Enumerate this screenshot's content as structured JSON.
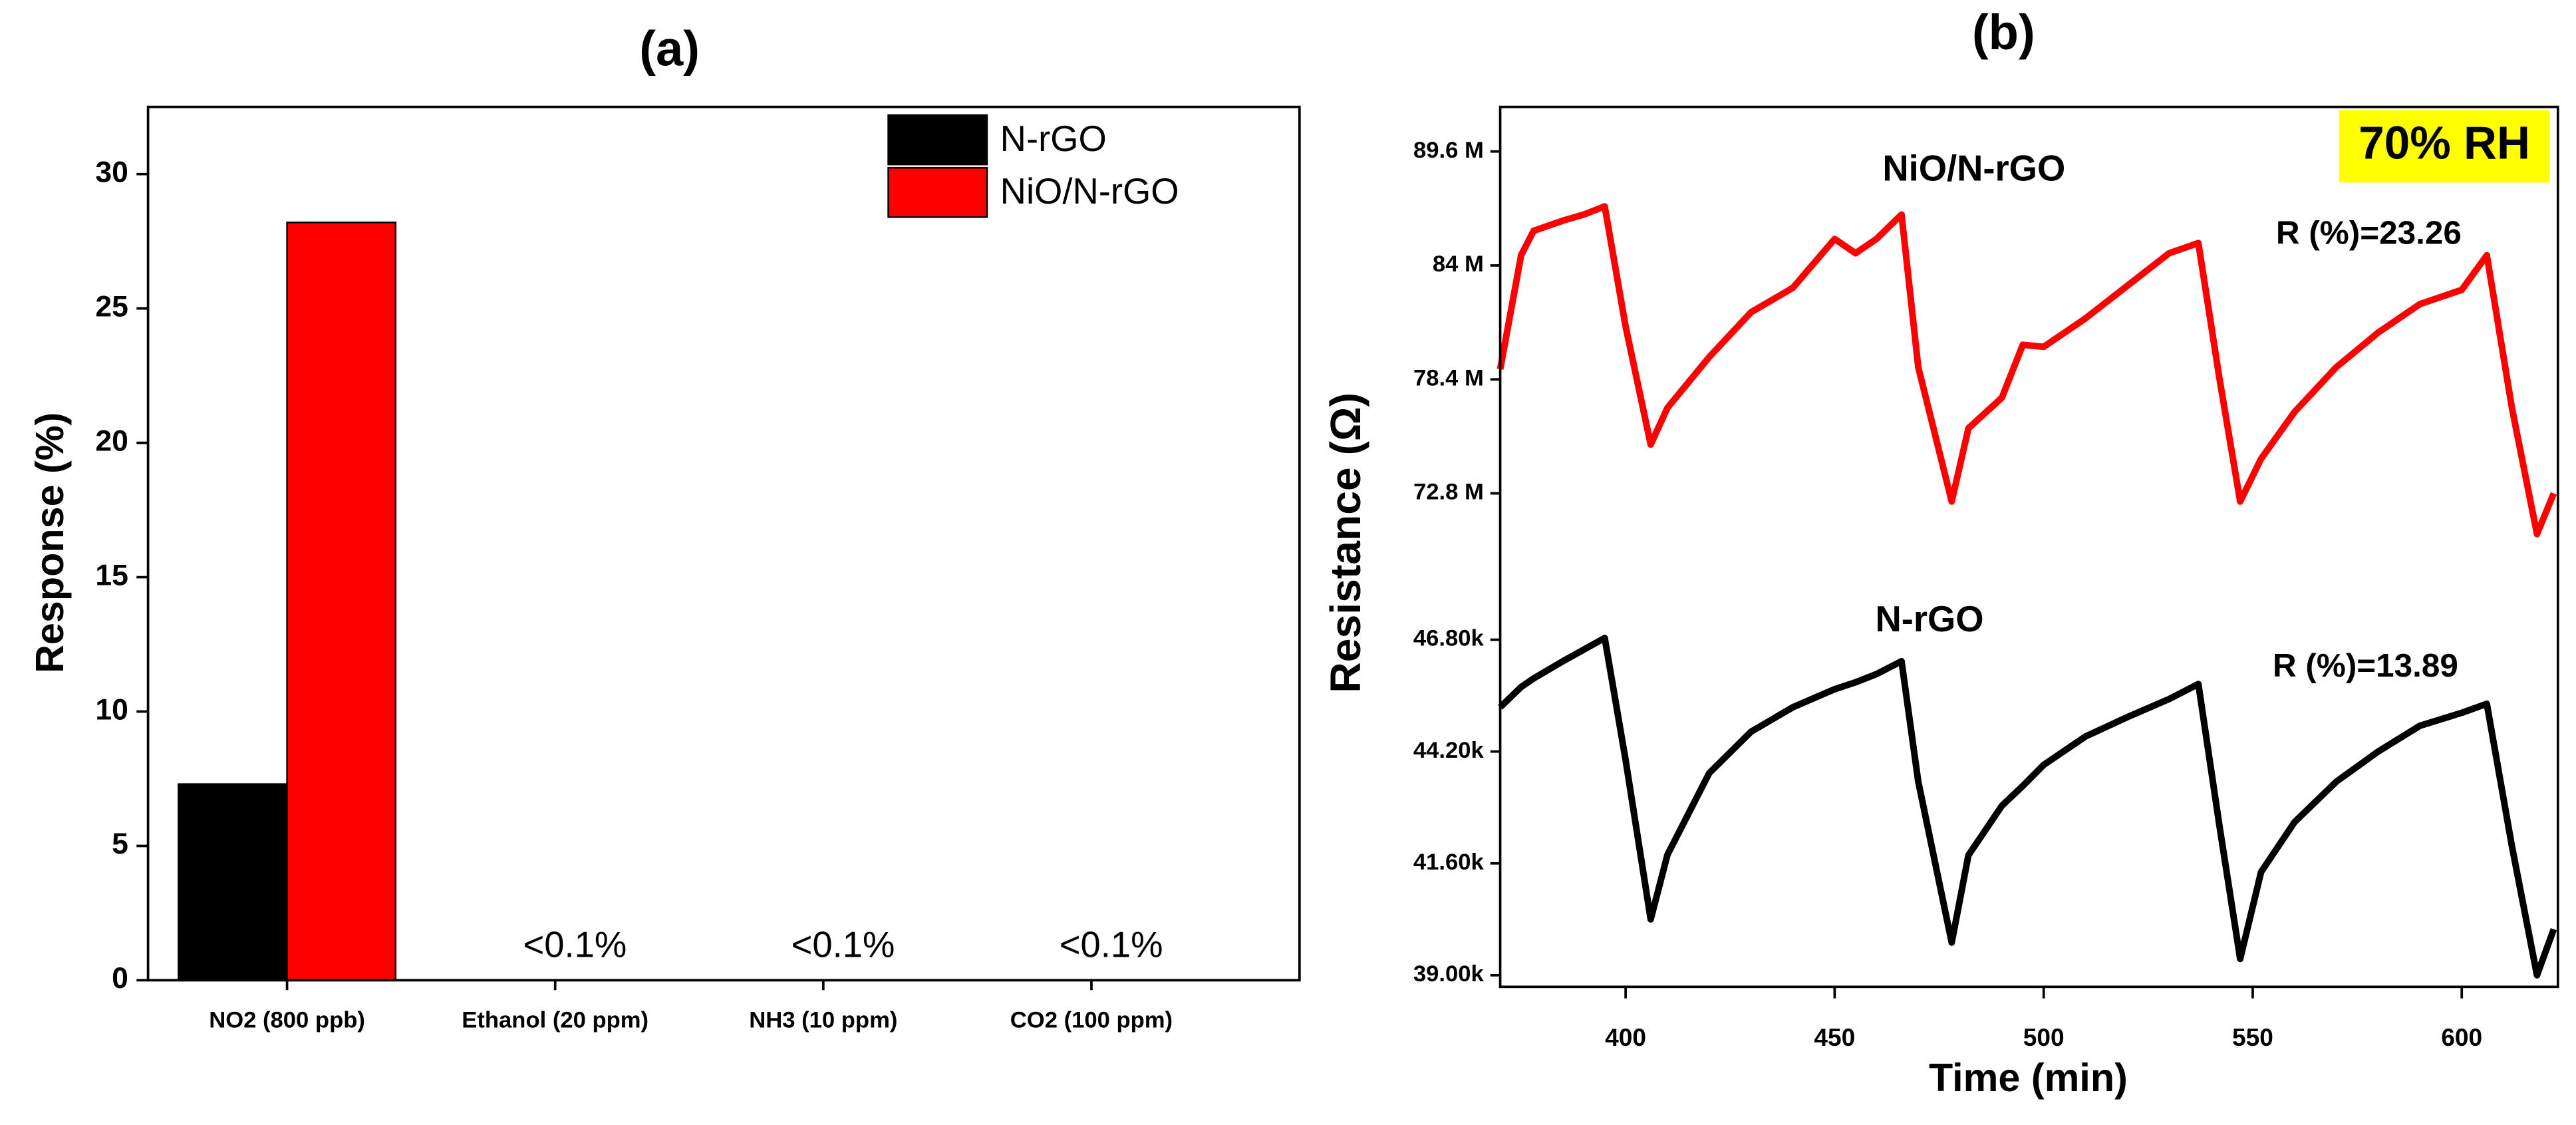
{
  "chart_data": [
    {
      "type": "bar",
      "title": "(a)",
      "y_label": "Response (%)",
      "categories": [
        "NO2 (800 ppb)",
        "Ethanol (20 ppm)",
        "NH3 (10 ppm)",
        "CO2 (100 ppm)"
      ],
      "series": [
        {
          "name": "N-rGO",
          "color": "#000000",
          "values": [
            7.3,
            null,
            null,
            null
          ]
        },
        {
          "name": "NiO/N-rGO",
          "color": "#ff0000",
          "values": [
            28.2,
            null,
            null,
            null
          ]
        }
      ],
      "annotations": [
        "<0.1%",
        "<0.1%",
        "<0.1%"
      ],
      "ylim": [
        0,
        32.5
      ],
      "yticks": [
        0,
        5,
        10,
        15,
        20,
        25,
        30
      ],
      "legend": "top-right"
    },
    {
      "type": "line",
      "title": "(b)",
      "x_label": "Time (min)",
      "y_label": "Resistance (Ω)",
      "x": [
        370,
        375,
        378,
        385,
        390,
        395,
        400,
        406,
        410,
        420,
        430,
        440,
        450,
        455,
        460,
        466,
        470,
        478,
        482,
        490,
        495,
        500,
        510,
        520,
        530,
        537,
        542,
        547,
        552,
        560,
        570,
        580,
        590,
        600,
        606,
        612,
        618,
        622
      ],
      "series": [
        {
          "name": "NiO/N-rGO",
          "color": "#ff0000",
          "axis": "y2",
          "values": [
            78900000,
            84500000,
            85700000,
            86200000,
            86500000,
            86900000,
            81000000,
            75200000,
            77000000,
            79500000,
            81700000,
            82900000,
            85300000,
            84600000,
            85300000,
            86500000,
            79000000,
            72400000,
            76000000,
            77500000,
            80100000,
            80000000,
            81400000,
            83000000,
            84600000,
            85100000,
            78500000,
            72400000,
            74500000,
            76800000,
            79000000,
            80700000,
            82100000,
            82800000,
            84500000,
            77000000,
            70800000,
            72800000
          ]
        },
        {
          "name": "N-rGO",
          "color": "#000000",
          "values": [
            45230,
            45700,
            45900,
            46300,
            46570,
            46840,
            44000,
            40300,
            41800,
            43700,
            44660,
            45230,
            45650,
            45810,
            46000,
            46300,
            43500,
            39760,
            41790,
            42940,
            43400,
            43890,
            44550,
            45000,
            45420,
            45770,
            42500,
            39380,
            41400,
            42560,
            43500,
            44200,
            44800,
            45100,
            45310,
            42000,
            39000,
            40070
          ]
        }
      ],
      "annotations": [
        {
          "text": "NiO/N-rGO",
          "color": "#ff0000"
        },
        {
          "text": "R (%)=23.26",
          "color": "#ff0000"
        },
        {
          "text": "N-rGO",
          "color": "#000000"
        },
        {
          "text": "R (%)=13.89",
          "color": "#000000"
        },
        {
          "text": "70% RH",
          "color": "#000000",
          "highlight": "#ffff00"
        }
      ],
      "xlim": [
        370,
        623
      ],
      "xticks": [
        400,
        450,
        500,
        550,
        600
      ],
      "ylim": [
        38730,
        48480
      ],
      "yticks": [
        {
          "value": 39000,
          "label": "39.00k"
        },
        {
          "value": 41600,
          "label": "41.60k"
        },
        {
          "value": 44200,
          "label": "44.20k"
        },
        {
          "value": 46800,
          "label": "46.80k"
        }
      ],
      "y2lim": [
        69160000,
        91790000
      ],
      "y2ticks": [
        {
          "value": 72800000,
          "label": "72.8 M"
        },
        {
          "value": 78400000,
          "label": "78.4 M"
        },
        {
          "value": 84000000,
          "label": "84 M"
        },
        {
          "value": 89600000,
          "label": "89.6 M"
        }
      ]
    }
  ]
}
